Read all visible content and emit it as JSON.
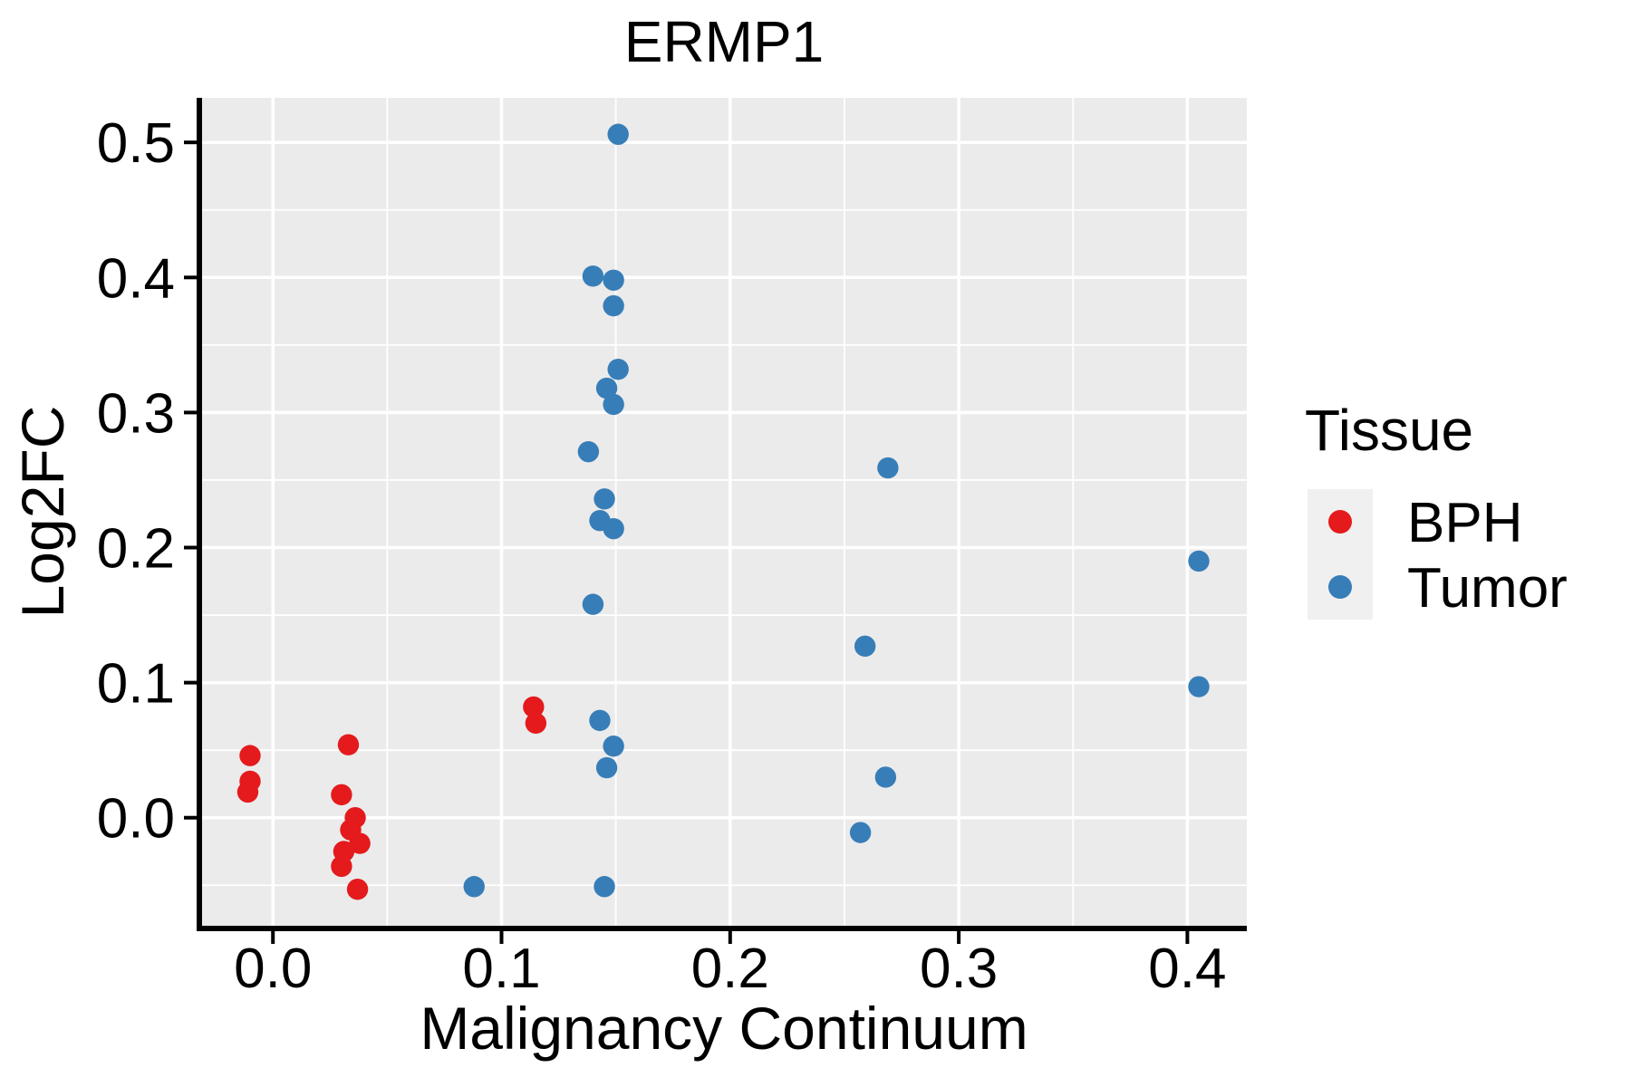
{
  "chart_data": {
    "type": "scatter",
    "title": "ERMP1",
    "xlabel": "Malignancy Continuum",
    "ylabel": "Log2FC",
    "xlim": [
      -0.031,
      0.426
    ],
    "ylim": [
      -0.08,
      0.533
    ],
    "x_tick_values": [
      0.0,
      0.1,
      0.2,
      0.3,
      0.4
    ],
    "x_tick_labels": [
      "0.0",
      "0.1",
      "0.2",
      "0.3",
      "0.4"
    ],
    "y_tick_values": [
      0.0,
      0.1,
      0.2,
      0.3,
      0.4,
      0.5
    ],
    "y_tick_labels": [
      "0.0",
      "0.1",
      "0.2",
      "0.3",
      "0.4",
      "0.5"
    ],
    "x_minor_gridlines": [
      0.05,
      0.15,
      0.25,
      0.35
    ],
    "y_minor_gridlines": [
      -0.05,
      0.05,
      0.15,
      0.25,
      0.35,
      0.45
    ],
    "grid": true,
    "legend": {
      "title": "Tissue",
      "position": "right",
      "entries": [
        {
          "label": "BPH",
          "color": "#E41A1C"
        },
        {
          "label": "Tumor",
          "color": "#377EB8"
        }
      ]
    },
    "series": [
      {
        "name": "BPH",
        "color": "#E41A1C",
        "points": [
          [
            -0.01,
            0.046
          ],
          [
            -0.01,
            0.027
          ],
          [
            -0.011,
            0.019
          ],
          [
            0.033,
            0.054
          ],
          [
            0.03,
            0.017
          ],
          [
            0.036,
            0.0
          ],
          [
            0.034,
            -0.009
          ],
          [
            0.038,
            -0.019
          ],
          [
            0.031,
            -0.025
          ],
          [
            0.03,
            -0.036
          ],
          [
            0.037,
            -0.053
          ],
          [
            0.114,
            0.082
          ],
          [
            0.115,
            0.07
          ]
        ]
      },
      {
        "name": "Tumor",
        "color": "#377EB8",
        "points": [
          [
            0.151,
            0.506
          ],
          [
            0.14,
            0.401
          ],
          [
            0.149,
            0.398
          ],
          [
            0.149,
            0.379
          ],
          [
            0.151,
            0.332
          ],
          [
            0.146,
            0.318
          ],
          [
            0.149,
            0.306
          ],
          [
            0.138,
            0.271
          ],
          [
            0.145,
            0.236
          ],
          [
            0.143,
            0.22
          ],
          [
            0.149,
            0.214
          ],
          [
            0.14,
            0.158
          ],
          [
            0.143,
            0.072
          ],
          [
            0.149,
            0.053
          ],
          [
            0.146,
            0.037
          ],
          [
            0.145,
            -0.051
          ],
          [
            0.088,
            -0.051
          ],
          [
            0.269,
            0.259
          ],
          [
            0.259,
            0.127
          ],
          [
            0.268,
            0.03
          ],
          [
            0.257,
            -0.011
          ],
          [
            0.405,
            0.19
          ],
          [
            0.405,
            0.097
          ]
        ]
      }
    ],
    "colors": {
      "panel_background": "#EBEBEB",
      "gridline": "#FFFFFF",
      "axis_line": "#000000",
      "tick_mark": "#000000",
      "text": "#000000",
      "legend_key_background": "#F0F0F0",
      "figure_background": "#FFFFFF"
    }
  }
}
